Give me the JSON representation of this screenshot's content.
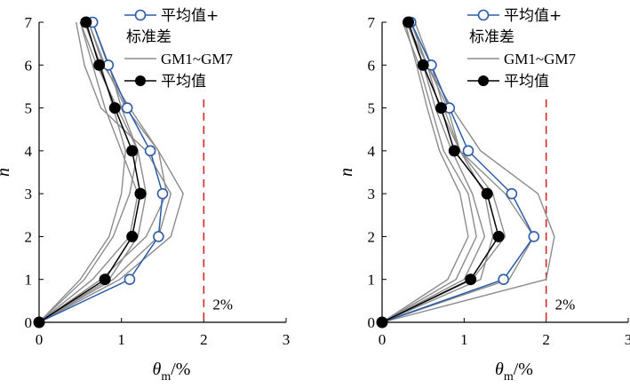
{
  "chart_data": [
    {
      "type": "line",
      "xlabel_main": "θ",
      "xlabel_sub": "m",
      "xlabel_unit": "/%",
      "ylabel": "n",
      "xlim": [
        0,
        3
      ],
      "ylim": [
        0,
        7
      ],
      "x_ticks": [
        "0",
        "1",
        "2",
        "3"
      ],
      "y_ticks": [
        "0",
        "1",
        "2",
        "3",
        "4",
        "5",
        "6",
        "7"
      ],
      "y": [
        0,
        1,
        2,
        3,
        4,
        5,
        6,
        7
      ],
      "legend": {
        "mean_plus_std": "平均值+",
        "mean_plus_std_line2": "标准差",
        "records": "GM1~GM7",
        "mean": "平均值"
      },
      "limit_line": {
        "x": 2,
        "label": "2%",
        "color": "#d62728"
      },
      "series": [
        {
          "key": "mean_plus_std",
          "color": "#2b5ca8",
          "marker": "open-circle",
          "x": [
            0,
            1.1,
            1.45,
            1.5,
            1.35,
            1.07,
            0.84,
            0.65
          ]
        },
        {
          "key": "mean",
          "color": "#000000",
          "marker": "filled-circle",
          "x": [
            0,
            0.8,
            1.13,
            1.23,
            1.13,
            0.92,
            0.73,
            0.57
          ]
        }
      ],
      "records": [
        [
          0,
          0.98,
          1.6,
          1.75,
          1.45,
          1.1,
          0.78,
          0.6
        ],
        [
          0,
          0.75,
          1.3,
          1.55,
          1.45,
          1.05,
          0.8,
          0.6
        ],
        [
          0,
          0.55,
          0.9,
          1.1,
          1.2,
          1.0,
          0.85,
          0.65
        ],
        [
          0,
          0.5,
          0.85,
          1.0,
          1.05,
          0.9,
          0.75,
          0.55
        ],
        [
          0,
          0.65,
          1.1,
          1.2,
          1.0,
          0.8,
          0.65,
          0.5
        ],
        [
          0,
          0.85,
          1.2,
          1.3,
          1.2,
          0.95,
          0.7,
          0.5
        ],
        [
          0,
          0.9,
          1.45,
          1.6,
          1.3,
          0.75,
          0.55,
          0.45
        ]
      ]
    },
    {
      "type": "line",
      "xlabel_main": "θ",
      "xlabel_sub": "m",
      "xlabel_unit": "/%",
      "ylabel": "n",
      "xlim": [
        0,
        3
      ],
      "ylim": [
        0,
        7
      ],
      "x_ticks": [
        "0",
        "1",
        "2",
        "3"
      ],
      "y_ticks": [
        "0",
        "1",
        "2",
        "3",
        "4",
        "5",
        "6",
        "7"
      ],
      "y": [
        0,
        1,
        2,
        3,
        4,
        5,
        6,
        7
      ],
      "legend": {
        "mean_plus_std": "平均值+",
        "mean_plus_std_line2": "标准差",
        "records": "GM1~GM7",
        "mean": "平均值"
      },
      "limit_line": {
        "x": 2,
        "label": "2%",
        "color": "#d62728"
      },
      "series": [
        {
          "key": "mean_plus_std",
          "color": "#2b5ca8",
          "marker": "open-circle",
          "x": [
            0,
            1.48,
            1.85,
            1.58,
            1.05,
            0.82,
            0.6,
            0.35
          ]
        },
        {
          "key": "mean",
          "color": "#000000",
          "marker": "filled-circle",
          "x": [
            0,
            1.08,
            1.42,
            1.28,
            0.88,
            0.72,
            0.5,
            0.32
          ]
        }
      ],
      "records": [
        [
          0,
          2.0,
          2.1,
          1.9,
          1.2,
          0.85,
          0.55,
          0.35
        ],
        [
          0,
          1.55,
          1.85,
          1.5,
          0.95,
          0.75,
          0.6,
          0.4
        ],
        [
          0,
          1.2,
          1.35,
          1.25,
          0.95,
          0.7,
          0.55,
          0.3
        ],
        [
          0,
          1.0,
          1.25,
          1.1,
          0.85,
          0.65,
          0.5,
          0.3
        ],
        [
          0,
          0.9,
          1.15,
          1.05,
          0.75,
          0.6,
          0.45,
          0.25
        ],
        [
          0,
          1.1,
          1.5,
          1.35,
          0.95,
          0.8,
          0.55,
          0.35
        ],
        [
          0,
          0.8,
          1.05,
          0.95,
          0.7,
          0.55,
          0.42,
          0.28
        ]
      ]
    }
  ]
}
